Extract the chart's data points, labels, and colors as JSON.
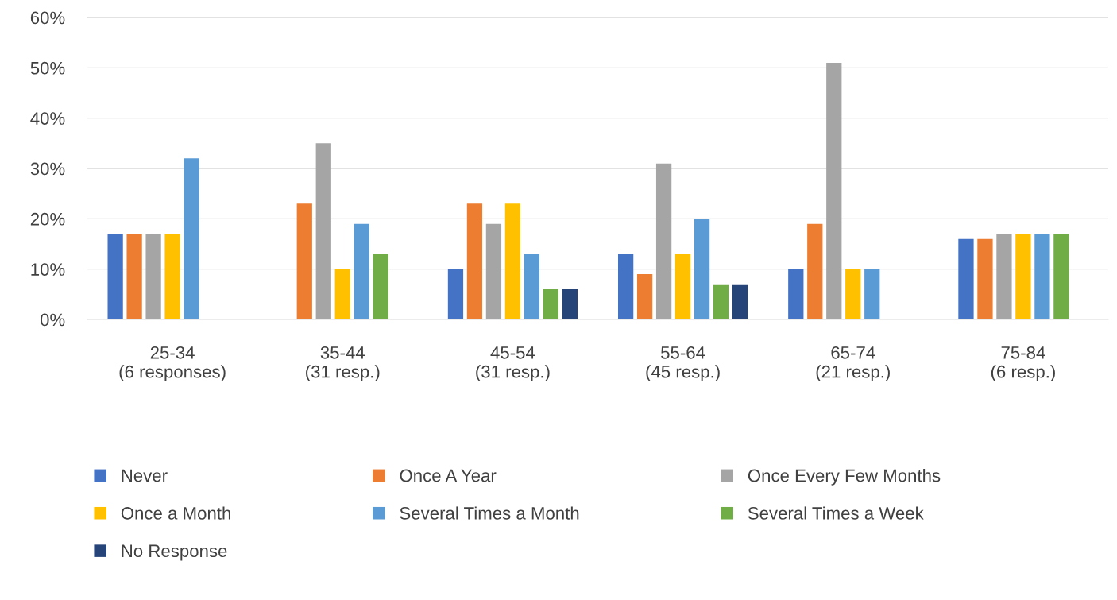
{
  "chart_data": {
    "type": "bar",
    "categories": [
      "25-34\n(6 responses)",
      "35-44\n(31 resp.)",
      "45-54\n(31 resp.)",
      "55-64\n(45 resp.)",
      "65-74\n(21 resp.)",
      "75-84\n(6 resp.)"
    ],
    "series": [
      {
        "name": "Never",
        "color": "#4472c4",
        "values": [
          17,
          null,
          10,
          13,
          10,
          16
        ]
      },
      {
        "name": "Once A Year",
        "color": "#ed7d31",
        "values": [
          17,
          23,
          23,
          9,
          19,
          16
        ]
      },
      {
        "name": "Once Every Few Months",
        "color": "#a5a5a5",
        "values": [
          17,
          35,
          19,
          31,
          51,
          17
        ]
      },
      {
        "name": "Once a Month",
        "color": "#ffc000",
        "values": [
          17,
          10,
          23,
          13,
          10,
          17
        ]
      },
      {
        "name": "Several Times a Month",
        "color": "#5b9bd5",
        "values": [
          32,
          19,
          13,
          20,
          10,
          17
        ]
      },
      {
        "name": "Several Times a Week",
        "color": "#70ad47",
        "values": [
          null,
          13,
          6,
          7,
          null,
          17
        ]
      },
      {
        "name": "No Response",
        "color": "#264478",
        "values": [
          null,
          null,
          6,
          7,
          null,
          null
        ]
      }
    ],
    "ylim": [
      0,
      60
    ],
    "yticks": [
      {
        "value": 0,
        "label": "0%"
      },
      {
        "value": 10,
        "label": "10%"
      },
      {
        "value": 20,
        "label": "20%"
      },
      {
        "value": 30,
        "label": "30%"
      },
      {
        "value": 40,
        "label": "40%"
      },
      {
        "value": 50,
        "label": "50%"
      },
      {
        "value": 60,
        "label": "60%"
      }
    ],
    "grid": "y",
    "legend": "bottom"
  }
}
